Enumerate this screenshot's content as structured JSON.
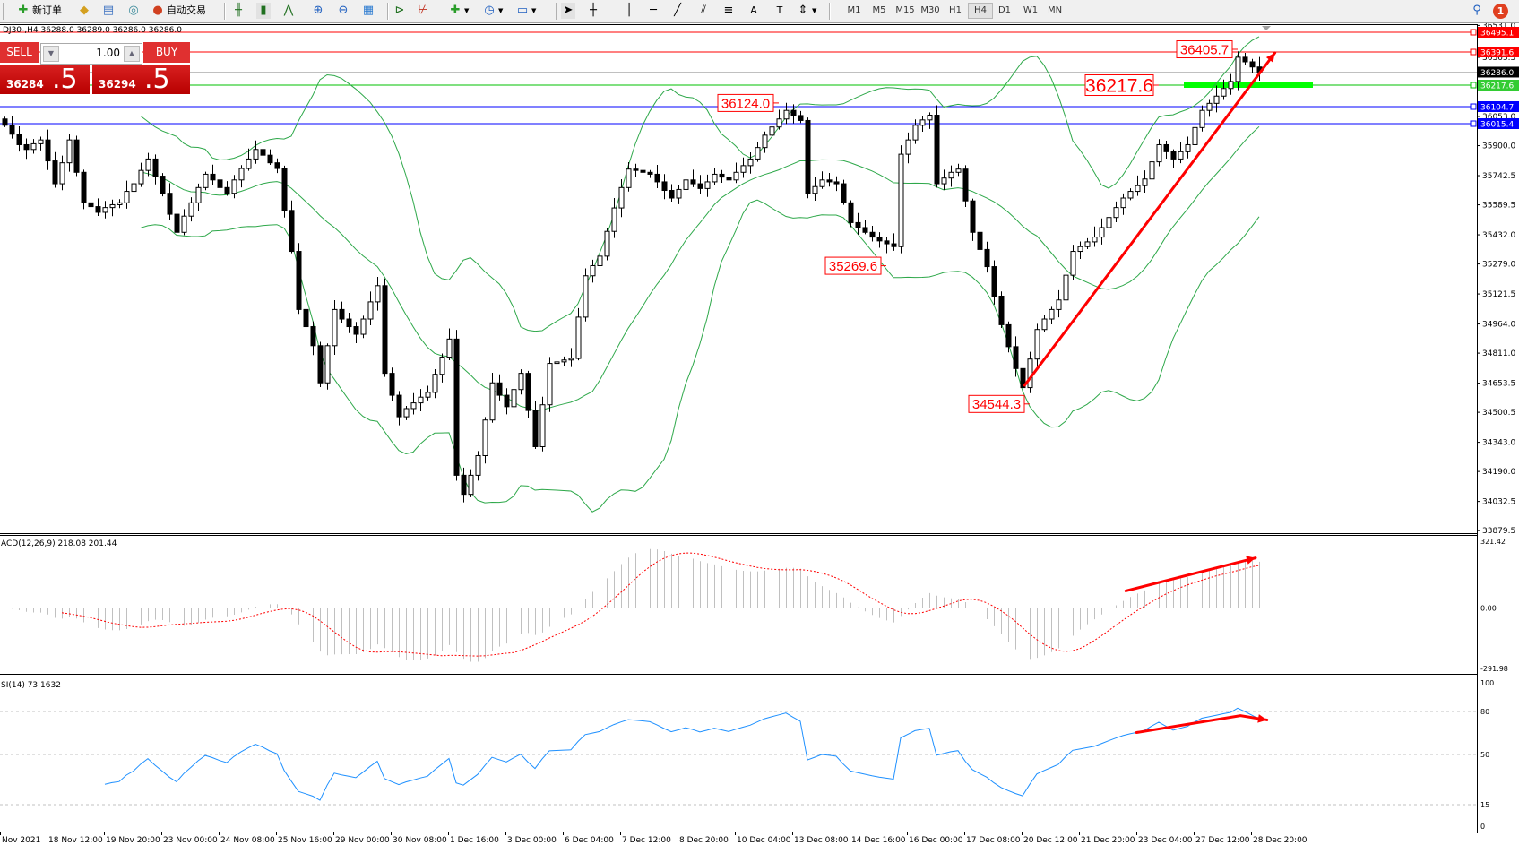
{
  "toolbar": {
    "new_order_label": "新订单",
    "auto_trading_label": "自动交易",
    "timeframes": [
      "M1",
      "M5",
      "M15",
      "M30",
      "H1",
      "H4",
      "D1",
      "W1",
      "MN"
    ],
    "active_timeframe": "H4",
    "notification_count": "1",
    "icons": [
      "new-order-icon",
      "market-watch-icon",
      "navigator-icon",
      "signals-icon",
      "auto-trading-icon",
      "bar-chart-icon",
      "candlestick-icon",
      "line-chart-icon",
      "zoom-in-icon",
      "zoom-out-icon",
      "tile-windows-icon",
      "chart-shift-icon",
      "autoscroll-icon",
      "indicators-icon",
      "periods-icon",
      "templates-icon",
      "cursor-icon",
      "crosshair-icon",
      "vertical-line-icon",
      "horizontal-line-icon",
      "trendline-icon",
      "fibonacci-icon",
      "channel-icon",
      "text-icon",
      "text-label-icon",
      "arrows-icon",
      "search-icon",
      "notification-icon"
    ]
  },
  "chart_header": "DJ30-,H4  36288.0 36289.0 36286.0 36286.0",
  "one_click": {
    "sell_label": "SELL",
    "buy_label": "BUY",
    "lot": "1.00",
    "sell_price_main": "36284",
    "sell_price_big": ".5",
    "buy_price_main": "36294",
    "buy_price_big": ".5"
  },
  "colors": {
    "bands": "#2ea84a",
    "macd_hist": "#c0c0c0",
    "macd_signal": "#ff0000",
    "rsi": "#1e90ff",
    "resistance": "#ff0000",
    "support": "#0000ff",
    "pivot": "#00c000",
    "highlight_bar": "#00ff00",
    "arrow": "#ff0000"
  },
  "chart_data": {
    "type": "candlestick",
    "symbol": "DJ30-",
    "timeframe": "H4",
    "indicators": [
      "Bollinger Bands",
      "MACD(12,26,9)",
      "RSI(14)"
    ],
    "first_open": 36040,
    "closes": [
      36007,
      35960,
      35905,
      35880,
      35910,
      35930,
      35820,
      35700,
      35810,
      35930,
      35760,
      35600,
      35580,
      35550,
      35575,
      35590,
      35600,
      35660,
      35700,
      35770,
      35830,
      35740,
      35650,
      35540,
      35445,
      35530,
      35600,
      35680,
      35750,
      35720,
      35680,
      35650,
      35720,
      35780,
      35830,
      35880,
      35850,
      35810,
      35780,
      35560,
      35345,
      35040,
      34950,
      34850,
      34655,
      34850,
      35040,
      34990,
      34950,
      34910,
      34990,
      35080,
      35165,
      34705,
      34590,
      34477,
      34520,
      34550,
      34580,
      34605,
      34700,
      34790,
      34885,
      34170,
      34070,
      34170,
      34273,
      34460,
      34655,
      34590,
      34530,
      34620,
      34705,
      34510,
      34320,
      34540,
      34757,
      34765,
      34775,
      34783,
      35000,
      35217,
      35270,
      35320,
      35450,
      35573,
      35680,
      35777,
      35770,
      35760,
      35750,
      35710,
      35665,
      35625,
      35670,
      35720,
      35700,
      35675,
      35710,
      35750,
      35735,
      35720,
      35760,
      35795,
      35830,
      35890,
      35955,
      35998,
      36040,
      36085,
      36058,
      36032,
      35650,
      35685,
      35720,
      35710,
      35700,
      35600,
      35496,
      35470,
      35445,
      35420,
      35400,
      35385,
      35370,
      35855,
      35930,
      36007,
      36035,
      36060,
      35700,
      35730,
      35760,
      35777,
      35610,
      35445,
      35355,
      35265,
      35110,
      34960,
      34845,
      34730,
      34630,
      34780,
      34935,
      34990,
      35040,
      35090,
      35220,
      35345,
      35370,
      35395,
      35420,
      35470,
      35523,
      35575,
      35625,
      35660,
      35690,
      35725,
      35815,
      35905,
      35868,
      35830,
      35868,
      35905,
      35995,
      36085,
      36122,
      36160,
      36200,
      36237,
      36364,
      36340,
      36313,
      36286
    ],
    "ylim": [
      33879.5,
      36531.0
    ],
    "price_ticks": [
      "36531.0",
      "36363.5",
      "36053.0",
      "35900.0",
      "35742.5",
      "35589.5",
      "35432.0",
      "35279.0",
      "35121.5",
      "34964.0",
      "34811.0",
      "34653.5",
      "34500.5",
      "34343.0",
      "34190.0",
      "34032.5",
      "33879.5"
    ],
    "current_price": {
      "price": 36286.0,
      "label": "36286.0"
    },
    "levels": [
      {
        "price": 36495.1,
        "label": "36495.1",
        "color": "#ff0000"
      },
      {
        "price": 36391.6,
        "label": "36391.6",
        "color": "#ff0000"
      },
      {
        "price": 36217.6,
        "label": "36217.6",
        "color": "#00c000"
      },
      {
        "price": 36104.7,
        "label": "36104.7",
        "color": "#0000ff"
      },
      {
        "price": 36015.4,
        "label": "36015.4",
        "color": "#0000ff"
      }
    ],
    "price_annotations": [
      {
        "text": "36124.0",
        "price": 36124.0,
        "bar": 108,
        "size": "normal"
      },
      {
        "text": "35269.6",
        "price": 35269.6,
        "bar": 123,
        "size": "normal"
      },
      {
        "text": "34544.3",
        "price": 34544.3,
        "bar": 143,
        "size": "normal"
      },
      {
        "text": "36405.7",
        "price": 36405.7,
        "bar": 172,
        "size": "normal"
      },
      {
        "text": "36217.6",
        "price": 36217.6,
        "bar": 161,
        "size": "large"
      }
    ],
    "highlight_zone": {
      "price": 36217.6,
      "bars": [
        165,
        183
      ]
    },
    "trend_arrow": {
      "from": {
        "bar": 142.3,
        "price": 34642
      },
      "to": {
        "bar": 177.2,
        "price": 36387
      }
    },
    "time_labels": [
      "Nov 2021",
      "18 Nov 12:00",
      "19 Nov 20:00",
      "23 Nov 00:00",
      "24 Nov 08:00",
      "25 Nov 16:00",
      "29 Nov 00:00",
      "30 Nov 08:00",
      "1 Dec 16:00",
      "3 Dec 00:00",
      "6 Dec 04:00",
      "7 Dec 12:00",
      "8 Dec 20:00",
      "10 Dec 04:00",
      "13 Dec 08:00",
      "14 Dec 16:00",
      "16 Dec 00:00",
      "17 Dec 08:00",
      "20 Dec 12:00",
      "21 Dec 20:00",
      "23 Dec 04:00",
      "27 Dec 12:00",
      "28 Dec 20:00"
    ],
    "macd": {
      "label": "ACD(12,26,9) 218.08 201.44",
      "ylim": [
        -291.98,
        321.42
      ],
      "ticks": [
        "321.42",
        "0.00",
        "-291.98"
      ],
      "arrow": {
        "from": {
          "bar": 156.4,
          "value": 82
        },
        "to": {
          "bar": 174.5,
          "value": 241
        }
      }
    },
    "rsi": {
      "label": "SI(14) 73.1632",
      "ylim": [
        0,
        100
      ],
      "ticks": [
        "100",
        "80",
        "50",
        "15",
        "0"
      ],
      "levels": [
        80,
        50,
        15
      ],
      "arrow": {
        "points": [
          {
            "bar": 157.9,
            "value": 65.3
          },
          {
            "bar": 172.4,
            "value": 77.1
          },
          {
            "bar": 176.1,
            "value": 74.1
          }
        ]
      }
    }
  }
}
